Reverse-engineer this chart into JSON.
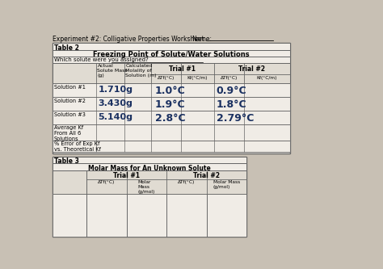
{
  "title": "Experiment #2: Colligative Properties Worksheet",
  "name_label": "Name:",
  "bg_color": "#c8c0b4",
  "table2_title": "Table 2",
  "table2_subtitle": "Freezing Point of Solute/Water Solutions",
  "table2_question": "Which solute were you assigned?",
  "row_labels": [
    "Solution #1",
    "Solution #2",
    "Solution #3",
    "Average Kf\nFrom All 6\nSolutions",
    "% Error of Exp Kf\nvs. Theoretical Kf"
  ],
  "handwritten_vals": [
    [
      "1.710g",
      "1.0°C",
      "0.9°C"
    ],
    [
      "3.430g",
      "1.9°C",
      "1.8°C"
    ],
    [
      "5.140g",
      "2.8°C",
      "2.79°C"
    ]
  ],
  "table3_title": "Table 3",
  "table3_subtitle": "Molar Mass for An Unknown Solute",
  "handwritten_color": "#1a3060",
  "table_bg": "#f0ece6",
  "border_color": "#666666",
  "header_bg": "#e0dbd2"
}
